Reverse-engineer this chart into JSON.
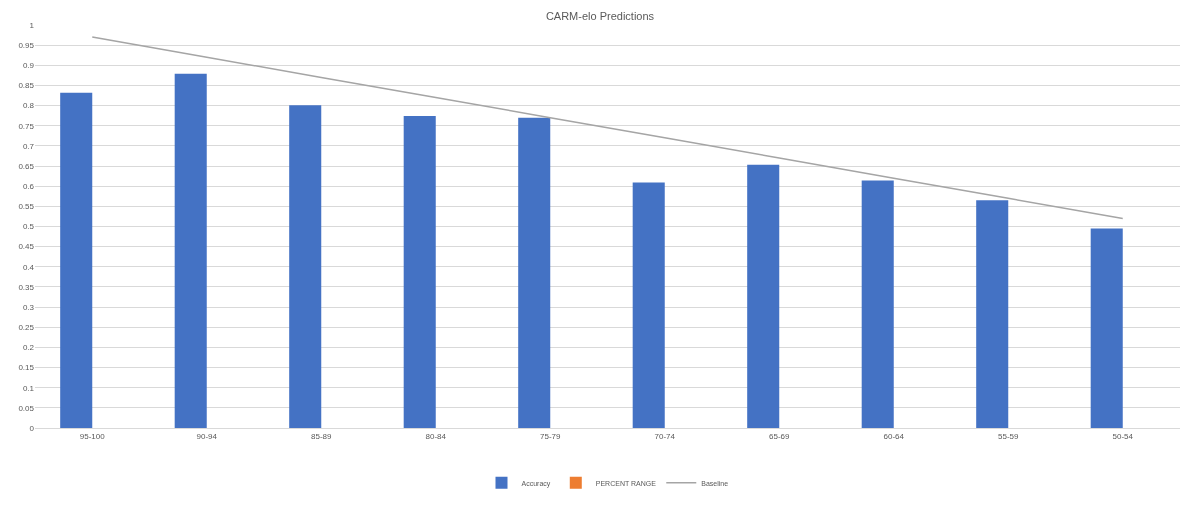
{
  "chart_data": {
    "type": "bar",
    "title": "CARM-elo Predictions",
    "categories": [
      "95-100",
      "90-94",
      "85-89",
      "80-84",
      "75-79",
      "70-74",
      "65-69",
      "60-64",
      "55-59",
      "50-54"
    ],
    "series": [
      {
        "name": "Accuracy",
        "color": "#4472c4",
        "values": [
          0.832,
          0.879,
          0.801,
          0.774,
          0.77,
          0.609,
          0.653,
          0.614,
          0.565,
          0.495
        ]
      },
      {
        "name": "PERCENT RANGE",
        "color": "#ed7d31",
        "values": [
          null,
          null,
          null,
          null,
          null,
          null,
          null,
          null,
          null,
          null
        ]
      },
      {
        "name": "Baseline",
        "type": "line",
        "color": "#a5a5a5",
        "values": [
          0.97,
          0.92,
          0.87,
          0.82,
          0.77,
          0.72,
          0.67,
          0.62,
          0.57,
          0.52
        ]
      }
    ],
    "ylim": [
      0,
      1
    ],
    "yticks": [
      0,
      0.05,
      0.1,
      0.15,
      0.2,
      0.25,
      0.3,
      0.35,
      0.4,
      0.45,
      0.5,
      0.55,
      0.6,
      0.65,
      0.7,
      0.75,
      0.8,
      0.85,
      0.9,
      0.95,
      1
    ],
    "grid": "y",
    "legend": "bottom",
    "marker": "none",
    "line_style": "solid"
  }
}
